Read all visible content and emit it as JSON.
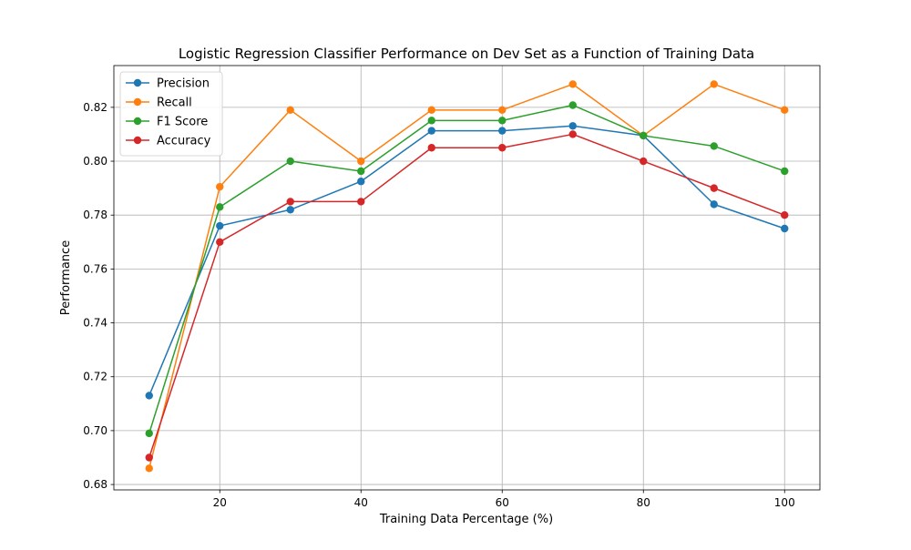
{
  "chart_data": {
    "type": "line",
    "title": "Logistic Regression Classifier Performance on Dev Set as a Function of Training Data",
    "xlabel": "Training Data Percentage (%)",
    "ylabel": "Performance",
    "x": [
      10,
      20,
      30,
      40,
      50,
      60,
      70,
      80,
      90,
      100
    ],
    "xlim": [
      5,
      105
    ],
    "ylim": [
      0.678,
      0.8355
    ],
    "xticks": [
      20,
      40,
      60,
      80,
      100
    ],
    "yticks": [
      0.68,
      0.7,
      0.72,
      0.74,
      0.76,
      0.78,
      0.8,
      0.82
    ],
    "xtick_labels": [
      "20",
      "40",
      "60",
      "80",
      "100"
    ],
    "ytick_labels": [
      "0.68",
      "0.70",
      "0.72",
      "0.74",
      "0.76",
      "0.78",
      "0.80",
      "0.82"
    ],
    "grid": true,
    "legend_position": "top-left",
    "marker": "circle",
    "series": [
      {
        "name": "Precision",
        "color": "#1f77b4",
        "values": [
          0.713,
          0.776,
          0.782,
          0.7925,
          0.8113,
          0.8113,
          0.8131,
          0.8095,
          0.784,
          0.775
        ]
      },
      {
        "name": "Recall",
        "color": "#ff7f0e",
        "values": [
          0.686,
          0.7905,
          0.819,
          0.8,
          0.819,
          0.819,
          0.8286,
          0.8095,
          0.8286,
          0.819
        ]
      },
      {
        "name": "F1 Score",
        "color": "#2ca02c",
        "values": [
          0.699,
          0.783,
          0.8,
          0.7963,
          0.8151,
          0.8151,
          0.8208,
          0.8095,
          0.8056,
          0.7963
        ]
      },
      {
        "name": "Accuracy",
        "color": "#d62728",
        "values": [
          0.69,
          0.77,
          0.785,
          0.785,
          0.805,
          0.805,
          0.81,
          0.8,
          0.79,
          0.78
        ]
      }
    ]
  }
}
